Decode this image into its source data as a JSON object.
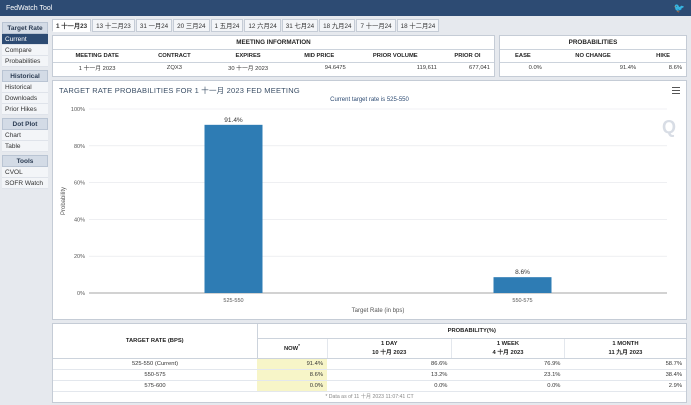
{
  "app": {
    "title": "FedWatch Tool"
  },
  "sidebar": {
    "groups": [
      {
        "header": "Target Rate",
        "items": [
          "Current",
          "Compare",
          "Probabilities"
        ]
      },
      {
        "header": "Historical",
        "items": [
          "Historical",
          "Downloads",
          "Prior Hikes"
        ]
      },
      {
        "header": "Dot Plot",
        "items": [
          "Chart",
          "Table"
        ]
      },
      {
        "header": "Tools",
        "items": [
          "CVOL",
          "SOFR Watch"
        ]
      }
    ]
  },
  "tabs": [
    "1 十一月23",
    "13 十二月23",
    "31 一月24",
    "20 三月24",
    "1 五月24",
    "12 六月24",
    "31 七月24",
    "18 九月24",
    "7 十一月24",
    "18 十二月24"
  ],
  "meeting": {
    "header": "MEETING INFORMATION",
    "cols": [
      "MEETING DATE",
      "CONTRACT",
      "EXPIRES",
      "MID PRICE",
      "PRIOR VOLUME",
      "PRIOR OI"
    ],
    "row": [
      "1 十一月 2023",
      "ZQX3",
      "30 十一月 2023",
      "94.6475",
      "119,611",
      "677,041"
    ]
  },
  "probabilities": {
    "header": "PROBABILITIES",
    "cols": [
      "EASE",
      "NO CHANGE",
      "HIKE"
    ],
    "row": [
      "0.0%",
      "91.4%",
      "8.6%"
    ]
  },
  "chart_data": {
    "type": "bar",
    "title": "TARGET RATE PROBABILITIES FOR 1 十一月 2023 FED MEETING",
    "subtitle": "Current target rate is 525-550",
    "categories": [
      "525-550",
      "550-575"
    ],
    "values": [
      91.4,
      8.6
    ],
    "data_labels": [
      "91.4%",
      "8.6%"
    ],
    "xlabel": "Target Rate (in bps)",
    "ylabel": "Probability",
    "ylim": [
      0,
      100
    ],
    "yticks": [
      "0%",
      "20%",
      "40%",
      "60%",
      "80%",
      "100%"
    ],
    "grid": true,
    "color": "#2e7cb4"
  },
  "watermark": "Q",
  "bottom": {
    "target_header": "TARGET RATE (BPS)",
    "prob_header": "PROBABILITY(%)",
    "cols": [
      {
        "line1": "NOW",
        "line2": "",
        "sup": "*"
      },
      {
        "line1": "1 DAY",
        "line2": "10 十月 2023"
      },
      {
        "line1": "1 WEEK",
        "line2": "4 十月 2023"
      },
      {
        "line1": "1 MONTH",
        "line2": "11 九月 2023"
      }
    ],
    "rows": [
      {
        "rate": "525-550 (Current)",
        "vals": [
          "91.4%",
          "86.6%",
          "76.9%",
          "58.7%"
        ]
      },
      {
        "rate": "550-575",
        "vals": [
          "8.6%",
          "13.2%",
          "23.1%",
          "38.4%"
        ]
      },
      {
        "rate": "575-600",
        "vals": [
          "0.0%",
          "0.0%",
          "0.0%",
          "2.9%"
        ]
      }
    ],
    "footer": "* Data as of 11 十月 2023 11:07:41 CT"
  }
}
